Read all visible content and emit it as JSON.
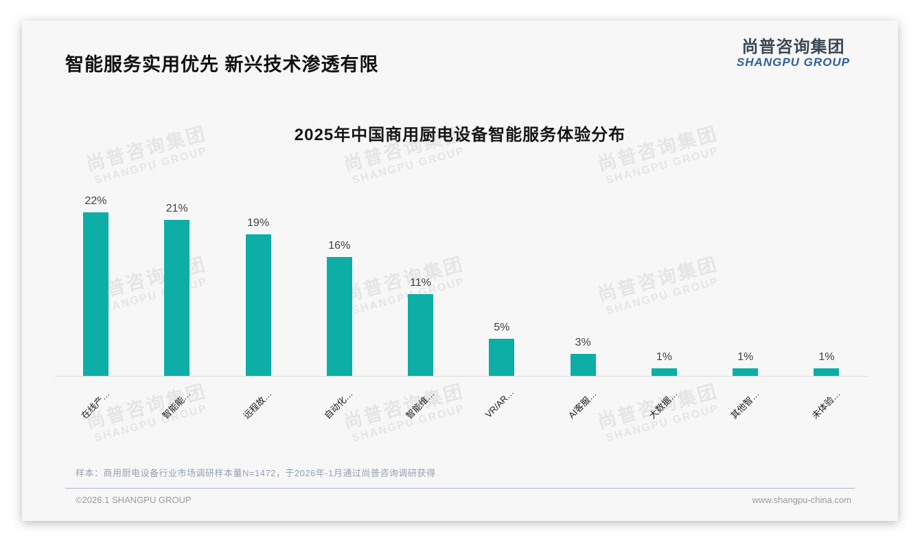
{
  "page": {
    "title": "智能服务实用优先 新兴技术渗透有限",
    "logo": {
      "cn": "尚普咨询集团",
      "en": "SHANGPU GROUP"
    },
    "watermark": {
      "cn": "尚普咨询集团",
      "en": "SHANGPU GROUP"
    },
    "note": "样本：商用厨电设备行业市场调研样本量N=1472，于2026年-1月通过尚普咨询调研获得",
    "footer": {
      "left": "©2026.1 SHANGPU GROUP",
      "right": "www.shangpu-china.com"
    }
  },
  "chart_data": {
    "type": "bar",
    "title": "2025年中国商用厨电设备智能服务体验分布",
    "categories": [
      "在线产…",
      "智能能…",
      "远程故…",
      "自动化…",
      "智能维…",
      "VR/AR…",
      "AI客服…",
      "大数据…",
      "其他智…",
      "未体验…"
    ],
    "values": [
      22,
      21,
      19,
      16,
      11,
      5,
      3,
      1,
      1,
      1
    ],
    "value_labels": [
      "22%",
      "21%",
      "19%",
      "16%",
      "11%",
      "5%",
      "3%",
      "1%",
      "1%",
      "1%"
    ],
    "unit": "%",
    "ylabel": "",
    "xlabel": "",
    "ylim": [
      0,
      24
    ],
    "grid": false,
    "legend": false,
    "bar_color": "#0CAEA6"
  }
}
